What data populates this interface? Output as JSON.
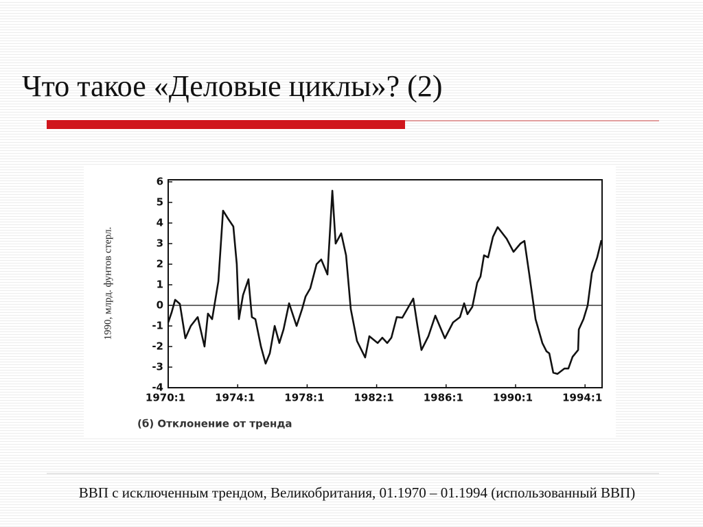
{
  "title": "Что такое «Деловые циклы»? (2)",
  "caption": "ВВП с исключенным трендом, Великобритания, 01.1970 – 01.1994 (использованный ВВП)",
  "chart_data": {
    "type": "line",
    "ylabel": "1990, млрд. фунтов стерл.",
    "subtitle": "(б) Отклонение от тренда",
    "xlim": [
      1970,
      1995
    ],
    "ylim": [
      -4,
      6
    ],
    "xticks": [
      {
        "value": 1970,
        "label": "1970:1"
      },
      {
        "value": 1974,
        "label": "1974:1"
      },
      {
        "value": 1978,
        "label": "1978:1"
      },
      {
        "value": 1982,
        "label": "1982:1"
      },
      {
        "value": 1986,
        "label": "1986:1"
      },
      {
        "value": 1990,
        "label": "1990:1"
      },
      {
        "value": 1994,
        "label": "1994:1"
      }
    ],
    "yticks": [
      -4,
      -3,
      -2,
      -1,
      0,
      1,
      2,
      3,
      4,
      5,
      6
    ],
    "zero_line": true,
    "x": [
      1970.0,
      1970.2,
      1970.4,
      1970.67,
      1970.99,
      1971.3,
      1971.7,
      1972.09,
      1972.29,
      1972.53,
      1972.89,
      1973.16,
      1973.48,
      1973.75,
      1973.95,
      1974.07,
      1974.31,
      1974.62,
      1974.82,
      1975.02,
      1975.34,
      1975.61,
      1975.85,
      1976.13,
      1976.4,
      1976.64,
      1976.96,
      1977.39,
      1977.71,
      1977.91,
      1978.18,
      1978.54,
      1978.81,
      1979.17,
      1979.45,
      1979.64,
      1979.96,
      1980.24,
      1980.51,
      1980.87,
      1981.34,
      1981.58,
      1982.06,
      1982.33,
      1982.61,
      1982.85,
      1983.16,
      1983.48,
      1984.11,
      1984.35,
      1984.58,
      1984.98,
      1985.38,
      1985.93,
      1986.4,
      1986.8,
      1987.04,
      1987.23,
      1987.51,
      1987.79,
      1987.98,
      1988.18,
      1988.42,
      1988.7,
      1988.97,
      1989.49,
      1989.88,
      1990.28,
      1990.51,
      1990.79,
      1991.15,
      1991.54,
      1991.78,
      1991.94,
      1992.17,
      1992.41,
      1992.81,
      1993.04,
      1993.28,
      1993.6,
      1993.64,
      1993.91,
      1994.15,
      1994.39,
      1994.7,
      1994.94
    ],
    "series": [
      {
        "name": "ВВП",
        "color": "#111111",
        "values": [
          -0.83,
          -0.33,
          0.27,
          0.07,
          -1.6,
          -1.0,
          -0.57,
          -2.0,
          -0.4,
          -0.67,
          1.17,
          4.6,
          4.17,
          3.83,
          2.0,
          -0.67,
          0.5,
          1.27,
          -0.57,
          -0.67,
          -2.0,
          -2.83,
          -2.33,
          -1.0,
          -1.83,
          -1.17,
          0.1,
          -1.0,
          -0.17,
          0.43,
          0.83,
          2.0,
          2.23,
          1.5,
          5.57,
          3.0,
          3.5,
          2.43,
          -0.17,
          -1.73,
          -2.53,
          -1.5,
          -1.83,
          -1.57,
          -1.83,
          -1.57,
          -0.57,
          -0.6,
          0.33,
          -1.0,
          -2.17,
          -1.5,
          -0.5,
          -1.6,
          -0.83,
          -0.57,
          0.1,
          -0.43,
          -0.07,
          1.1,
          1.4,
          2.43,
          2.33,
          3.33,
          3.8,
          3.23,
          2.6,
          3.0,
          3.13,
          1.5,
          -0.67,
          -1.83,
          -2.23,
          -2.33,
          -3.27,
          -3.33,
          -3.07,
          -3.07,
          -2.5,
          -2.17,
          -1.17,
          -0.67,
          0.0,
          1.57,
          2.33,
          3.17
        ]
      }
    ]
  }
}
